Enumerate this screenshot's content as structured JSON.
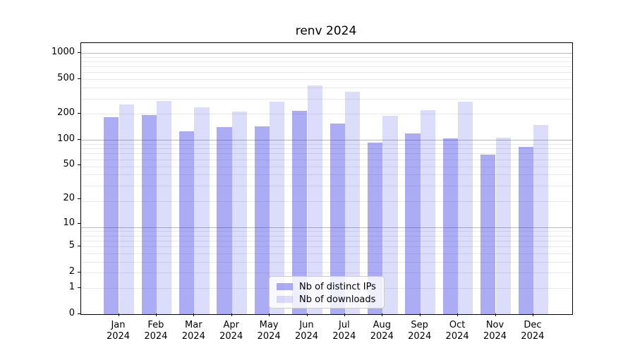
{
  "chart_data": {
    "type": "bar",
    "title": "renv 2024",
    "year": "2024",
    "categories": [
      "Jan",
      "Feb",
      "Mar",
      "Apr",
      "May",
      "Jun",
      "Jul",
      "Aug",
      "Sep",
      "Oct",
      "Nov",
      "Dec"
    ],
    "series": [
      {
        "name": "Nb of distinct IPs",
        "color": "rgba(47,47,230,0.40)",
        "values": [
          183,
          191,
          125,
          139,
          143,
          216,
          155,
          93,
          118,
          104,
          67,
          83
        ]
      },
      {
        "name": "Nb of downloads",
        "color": "rgba(47,47,230,0.17)",
        "values": [
          257,
          279,
          238,
          212,
          275,
          421,
          356,
          189,
          221,
          274,
          105,
          147
        ]
      }
    ],
    "yscale": "log1p",
    "yticks": [
      0,
      1,
      2,
      5,
      10,
      20,
      50,
      100,
      200,
      500,
      1000
    ],
    "ylim": [
      0,
      1000
    ],
    "grid": true,
    "legend_position": "lower center",
    "xlabel": "",
    "ylabel": ""
  },
  "colors": {
    "bar_distinct_ips": "rgba(47,47,230,0.40)",
    "bar_downloads": "rgba(47,47,230,0.17)",
    "grid_major": "#b9b9b9",
    "grid_minor": "#e9e9e9",
    "axis": "#000000",
    "background": "#ffffff"
  }
}
